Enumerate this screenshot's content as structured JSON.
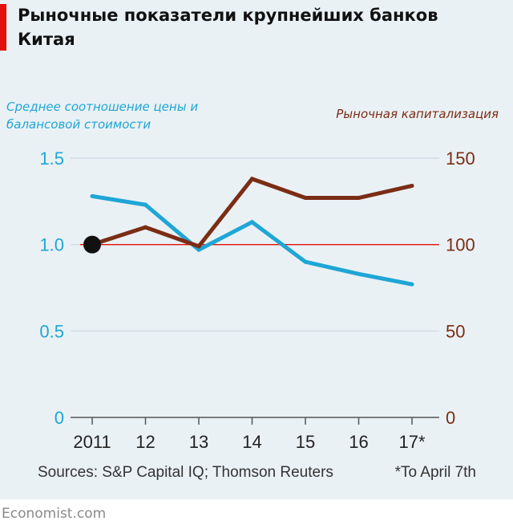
{
  "chart_data": {
    "type": "line",
    "title": "Рыночные показатели крупнейших банков Китая",
    "categories": [
      "2011",
      "12",
      "13",
      "14",
      "15",
      "16",
      "17*"
    ],
    "left_axis": {
      "label": "Среднее соотношение цены и балансовой стоимости",
      "range": [
        0,
        1.5
      ],
      "ticks": [
        "0",
        "0.5",
        "1.0",
        "1.5"
      ],
      "color": "#1ea6d6"
    },
    "right_axis": {
      "label": "Рыночная капитализация",
      "range": [
        0,
        150
      ],
      "ticks": [
        "0",
        "50",
        "100",
        "150"
      ],
      "color": "#7b2d14"
    },
    "series": [
      {
        "name": "Среднее соотношение цены и балансовой стоимости",
        "axis": "left",
        "color": "#1ea6d6",
        "values": [
          1.28,
          1.23,
          0.97,
          1.13,
          0.9,
          0.83,
          0.77
        ]
      },
      {
        "name": "Рыночная капитализация",
        "axis": "right",
        "color": "#7b2d14",
        "values": [
          100,
          110,
          99,
          138,
          127,
          127,
          134
        ]
      }
    ],
    "reference_line": {
      "value": 100,
      "axis": "right",
      "color": "#e3120b"
    },
    "start_marker": {
      "category": "2011",
      "value": 100
    },
    "grid": true,
    "source": "Sources: S&P Capital IQ; Thomson Reuters",
    "footnote": "*To April 7th"
  },
  "brand": "Economist.com"
}
